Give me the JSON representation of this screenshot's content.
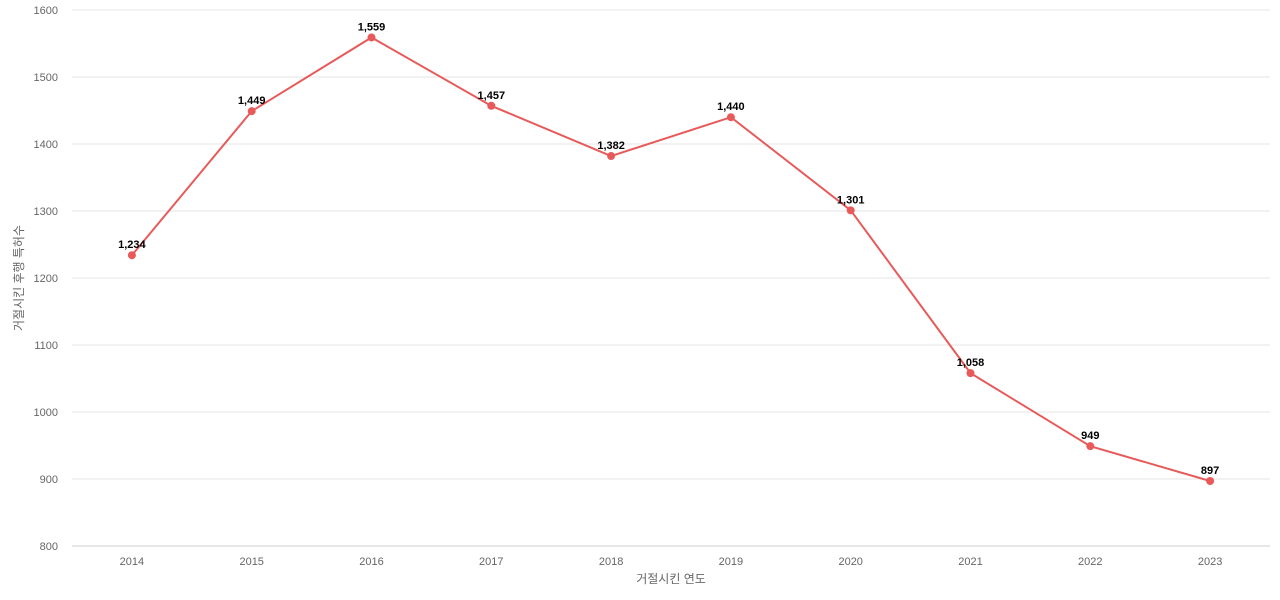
{
  "chart_data": {
    "type": "line",
    "title": "",
    "xlabel": "거절시킨 연도",
    "ylabel": "거절시킨 후행 특허수",
    "categories": [
      "2014",
      "2015",
      "2016",
      "2017",
      "2018",
      "2019",
      "2020",
      "2021",
      "2022",
      "2023"
    ],
    "series": [
      {
        "values": [
          1234,
          1449,
          1559,
          1457,
          1382,
          1440,
          1301,
          1058,
          949,
          897
        ],
        "labels": [
          "1,234",
          "1,449",
          "1,559",
          "1,457",
          "1,382",
          "1,440",
          "1,301",
          "1,058",
          "949",
          "897"
        ]
      }
    ],
    "ylim": [
      800,
      1600
    ],
    "yticks": [
      "800",
      "900",
      "1000",
      "1100",
      "1200",
      "1300",
      "1400",
      "1500",
      "1600"
    ],
    "grid": true,
    "legend": "none",
    "colors": {
      "line": "#e85a5a",
      "marker": "#e85a5a"
    }
  }
}
